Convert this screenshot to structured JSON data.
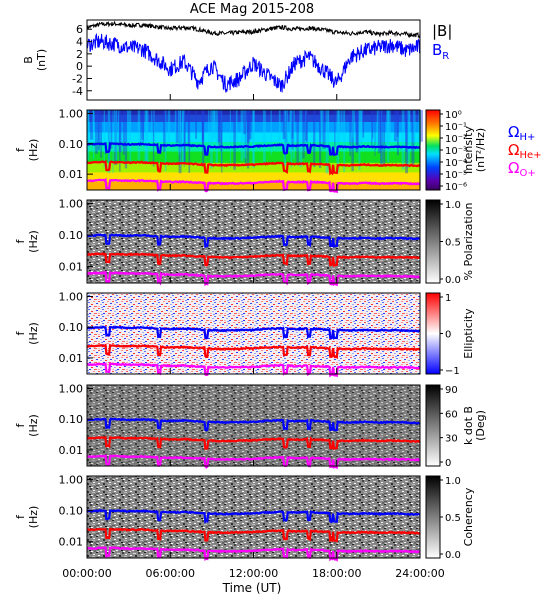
{
  "title": "ACE Mag 2015-208",
  "time_axis": {
    "label": "Time (UT)",
    "ticks": [
      "00:00:00",
      "06:00:00",
      "12:00:00",
      "18:00:00",
      "24:00:00"
    ],
    "range_hours": [
      0,
      24
    ]
  },
  "chart_data": [
    {
      "type": "line",
      "panel": "magnetic-field",
      "ylabel_lines": [
        "B",
        "(nT)"
      ],
      "yticks": [
        "6",
        "4",
        "2",
        "0",
        "-2",
        "-4"
      ],
      "ylim": [
        -5.5,
        7.5
      ],
      "legend": [
        "|B|",
        "B_R"
      ],
      "series": [
        {
          "name": "|B|",
          "color": "#000000",
          "x": [
            0,
            1,
            2,
            3,
            4,
            5,
            6,
            7,
            8,
            9,
            10,
            11,
            12,
            13,
            14,
            15,
            16,
            17,
            18,
            19,
            20,
            21,
            22,
            23,
            24
          ],
          "values": [
            6.3,
            6.8,
            6.9,
            6.6,
            6.7,
            6.4,
            6.1,
            6.3,
            6.0,
            5.4,
            5.3,
            5.5,
            5.6,
            6.0,
            6.3,
            6.0,
            6.2,
            5.9,
            5.5,
            5.3,
            5.6,
            5.2,
            5.4,
            5.2,
            5.0
          ]
        },
        {
          "name": "B_R",
          "color": "#0000ff",
          "x": [
            0,
            1,
            2,
            3,
            4,
            5,
            6,
            7,
            8,
            9,
            10,
            11,
            12,
            13,
            14,
            15,
            16,
            17,
            18,
            19,
            20,
            21,
            22,
            23,
            24
          ],
          "values": [
            3.5,
            4.0,
            3.6,
            3.0,
            2.8,
            1.2,
            -0.5,
            0.8,
            -2.5,
            0.2,
            -3.0,
            -2.0,
            0.5,
            -1.5,
            -3.2,
            0.5,
            1.5,
            -0.5,
            -2.8,
            1.5,
            2.5,
            3.0,
            3.5,
            2.5,
            3.2
          ]
        }
      ]
    },
    {
      "type": "heatmap",
      "panel": "intensity",
      "ylabel_lines": [
        "f",
        "(Hz)"
      ],
      "yticks": [
        "1.00",
        "0.10",
        "0.01"
      ],
      "y_scale": "log",
      "ylim": [
        0.003,
        1.3
      ],
      "colorbar": {
        "title": "Intensity",
        "units": "(nT²/Hz)",
        "ticks": [
          "10⁰",
          "10⁻¹",
          "10⁻²",
          "10⁻³",
          "10⁻⁴",
          "10⁻⁵",
          "10⁻⁶"
        ],
        "colormap": "rainbow"
      },
      "gyrofrequency_labels": [
        {
          "symbol": "Ω",
          "sub": "H+",
          "color": "#0000ff"
        },
        {
          "symbol": "Ω",
          "sub": "He+",
          "color": "#ff0000"
        },
        {
          "symbol": "Ω",
          "sub": "O+",
          "color": "#ff00ff"
        }
      ]
    },
    {
      "type": "heatmap",
      "panel": "polarization",
      "ylabel_lines": [
        "f",
        "(Hz)"
      ],
      "yticks": [
        "1.00",
        "0.10",
        "0.01"
      ],
      "y_scale": "log",
      "colorbar": {
        "title": "% Polarization",
        "ticks": [
          "1.0",
          "0.5",
          "0.0"
        ],
        "colormap": "gray"
      }
    },
    {
      "type": "heatmap",
      "panel": "ellipticity",
      "ylabel_lines": [
        "f",
        "(Hz)"
      ],
      "yticks": [
        "1.00",
        "0.10",
        "0.01"
      ],
      "y_scale": "log",
      "colorbar": {
        "title": "Ellipticity",
        "ticks": [
          "1",
          "0",
          "−1"
        ],
        "colormap": "blue-white-red"
      }
    },
    {
      "type": "heatmap",
      "panel": "k-dot-b",
      "ylabel_lines": [
        "f",
        "(Hz)"
      ],
      "yticks": [
        "1.00",
        "0.10",
        "0.01"
      ],
      "y_scale": "log",
      "colorbar": {
        "title": "k dot B",
        "units": "(Deg)",
        "ticks": [
          "90",
          "60",
          "30",
          "0"
        ],
        "colormap": "gray-reversed"
      }
    },
    {
      "type": "heatmap",
      "panel": "coherency",
      "ylabel_lines": [
        "f",
        "(Hz)"
      ],
      "yticks": [
        "1.00",
        "0.10",
        "0.01"
      ],
      "y_scale": "log",
      "colorbar": {
        "title": "Coherency",
        "ticks": [
          "1.0",
          "0.5",
          "0.0"
        ],
        "colormap": "gray"
      }
    }
  ],
  "gyrofrequencies": {
    "x": [
      0,
      1,
      2,
      3,
      4,
      5,
      6,
      7,
      8,
      9,
      10,
      11,
      12,
      13,
      14,
      15,
      16,
      17,
      18,
      19,
      20,
      21,
      22,
      23,
      24
    ],
    "H+": {
      "color": "#0000ff",
      "values": [
        0.095,
        0.1,
        0.1,
        0.095,
        0.098,
        0.092,
        0.088,
        0.09,
        0.085,
        0.08,
        0.078,
        0.08,
        0.082,
        0.088,
        0.092,
        0.086,
        0.09,
        0.085,
        0.08,
        0.078,
        0.082,
        0.078,
        0.08,
        0.078,
        0.075
      ]
    },
    "He+": {
      "color": "#ff0000",
      "values": [
        0.024,
        0.025,
        0.025,
        0.024,
        0.0245,
        0.023,
        0.022,
        0.0225,
        0.021,
        0.02,
        0.0195,
        0.02,
        0.0205,
        0.022,
        0.023,
        0.0215,
        0.0225,
        0.021,
        0.02,
        0.0195,
        0.0205,
        0.0195,
        0.02,
        0.0195,
        0.019
      ]
    },
    "O+": {
      "color": "#ff00ff",
      "values": [
        0.006,
        0.0063,
        0.0063,
        0.006,
        0.0061,
        0.0058,
        0.0055,
        0.0056,
        0.0053,
        0.005,
        0.0049,
        0.005,
        0.0051,
        0.0055,
        0.0058,
        0.0054,
        0.0056,
        0.0053,
        0.005,
        0.0049,
        0.0051,
        0.0049,
        0.005,
        0.0049,
        0.0047
      ]
    },
    "dips_hours": [
      1.5,
      5.2,
      8.6,
      14.3,
      16.0,
      17.6,
      17.9
    ]
  }
}
